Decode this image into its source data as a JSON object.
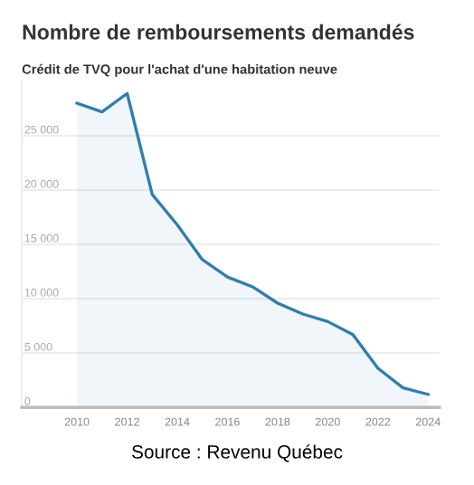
{
  "chart_data": {
    "type": "area",
    "title": "Nombre de remboursements demandés",
    "subtitle": "Crédit de TVQ pour l'achat d'une habitation neuve",
    "x": [
      2010,
      2011,
      2012,
      2013,
      2014,
      2015,
      2016,
      2017,
      2018,
      2019,
      2020,
      2021,
      2022,
      2023,
      2024
    ],
    "series": [
      {
        "color": "#2e7fb0",
        "values": [
          28000,
          27200,
          28900,
          19600,
          16800,
          13600,
          12000,
          11100,
          9600,
          8600,
          7900,
          6700,
          3600,
          1800,
          1200
        ]
      }
    ],
    "xlim": [
      2007.8,
      2024.45
    ],
    "xticks": [
      2010,
      2012,
      2014,
      2016,
      2018,
      2020,
      2022,
      2024
    ],
    "ylim": [
      0,
      30000
    ],
    "yticks": [
      {
        "value": 0,
        "label": "0"
      },
      {
        "value": 5000,
        "label": "5 000"
      },
      {
        "value": 10000,
        "label": "10 000"
      },
      {
        "value": 15000,
        "label": "15 000"
      },
      {
        "value": 20000,
        "label": "20 000"
      },
      {
        "value": 25000,
        "label": "25 000"
      }
    ],
    "grid": "y",
    "legend": false,
    "annotations": [
      "Source : Revenu Québec"
    ]
  }
}
